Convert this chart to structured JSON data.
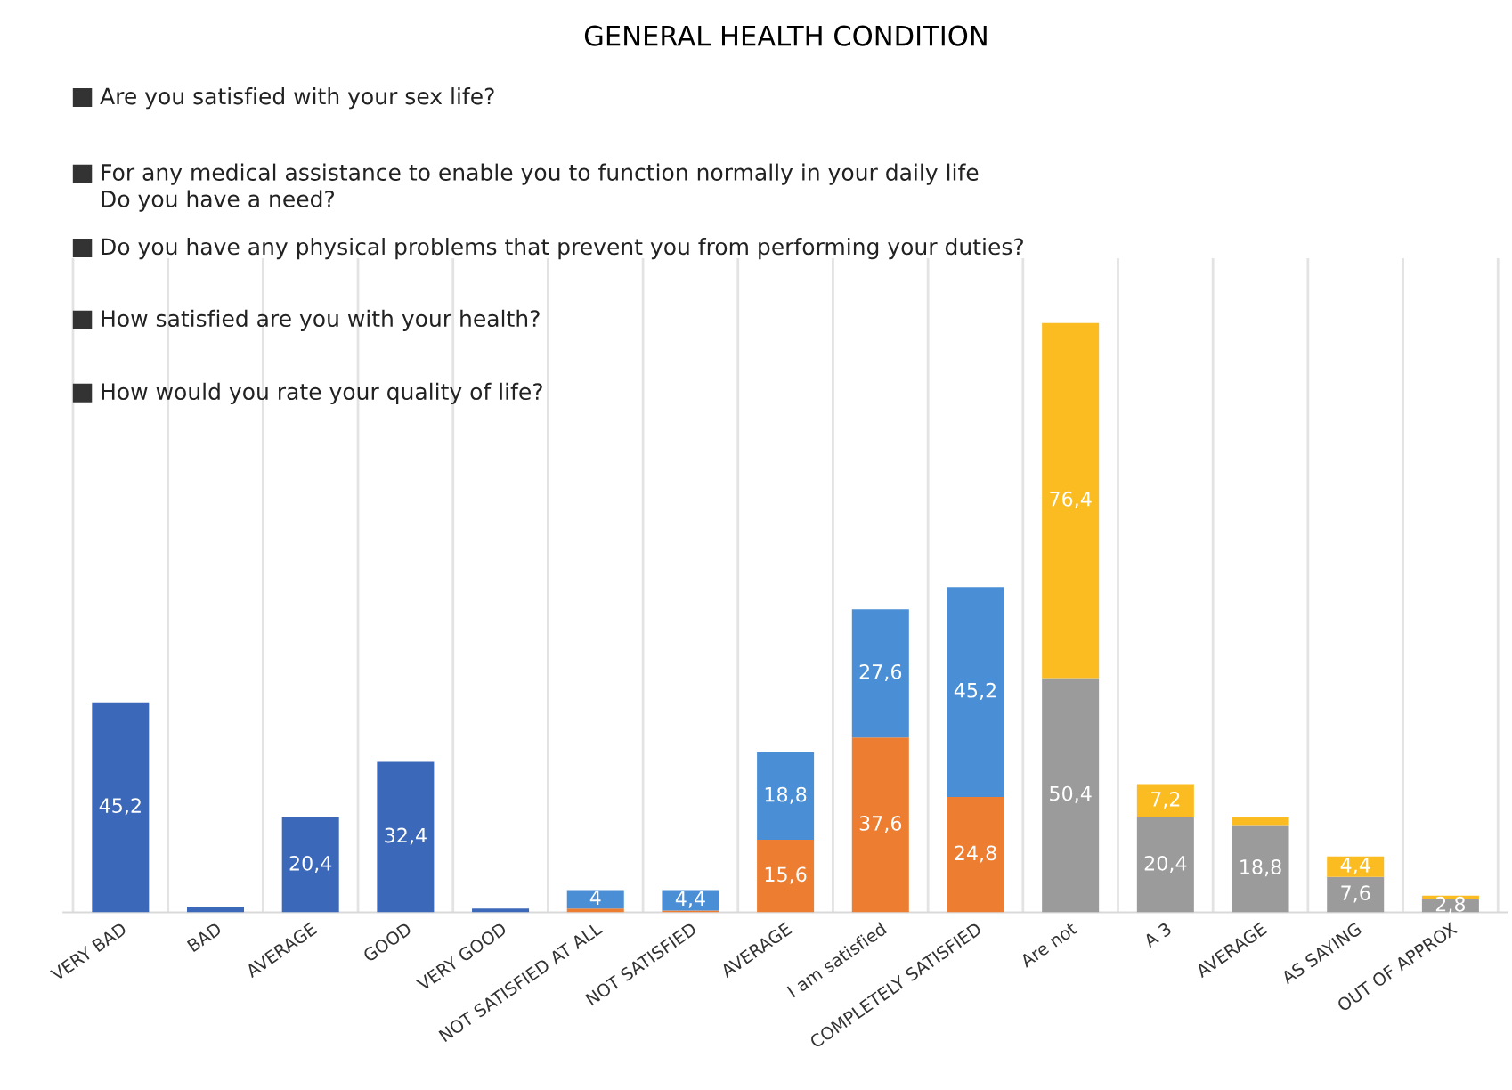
{
  "chart_data": {
    "type": "bar",
    "stacked": true,
    "title": "GENERAL HEALTH CONDITION",
    "annotations": [
      "Are you satisfied with your sex life?",
      "For any medical assistance to enable you to function normally in your daily life\nDo you have a need?",
      "Do you have any physical problems that prevent you from performing your duties?",
      "How satisfied are you with your health?",
      "How would you rate your quality of life?"
    ],
    "categories": [
      "VERY BAD",
      "BAD",
      "AVERAGE",
      "GOOD",
      "VERY GOOD",
      "NOT SATISFIED AT ALL",
      "NOT SATISFIED",
      "AVERAGE",
      "I am satisfied",
      "COMPLETELY SATISFIED",
      "Are not",
      "A 3",
      "AVERAGE",
      "AS SAYING",
      "OUT OF APPROX"
    ],
    "series": [
      {
        "color": "#3b68b9",
        "values": [
          45.2,
          1.2,
          20.4,
          32.4,
          0.8,
          null,
          null,
          null,
          null,
          null,
          null,
          null,
          null,
          null,
          null
        ],
        "value_labels": [
          "45,2",
          null,
          "20,4",
          "32,4",
          null,
          null,
          null,
          null,
          null,
          null,
          null,
          null,
          null,
          null,
          null
        ]
      },
      {
        "color": "#ed7d31",
        "values": [
          null,
          null,
          null,
          null,
          null,
          0.8,
          0.4,
          15.6,
          37.6,
          24.8,
          null,
          null,
          null,
          null,
          null
        ],
        "value_labels": [
          null,
          null,
          null,
          null,
          null,
          null,
          null,
          "15,6",
          "37,6",
          "24,8",
          null,
          null,
          null,
          null,
          null
        ]
      },
      {
        "color": "#4a8fd5",
        "values": [
          null,
          null,
          null,
          null,
          null,
          4,
          4.4,
          18.8,
          27.6,
          45.2,
          null,
          null,
          null,
          null,
          null
        ],
        "value_labels": [
          null,
          null,
          null,
          null,
          null,
          "4",
          "4,4",
          "18,8",
          "27,6",
          "45,2",
          null,
          null,
          null,
          null,
          null
        ]
      },
      {
        "color": "#9b9b9b",
        "values": [
          null,
          null,
          null,
          null,
          null,
          null,
          null,
          null,
          null,
          null,
          50.4,
          20.4,
          18.8,
          7.6,
          2.8
        ],
        "value_labels": [
          null,
          null,
          null,
          null,
          null,
          null,
          null,
          null,
          null,
          null,
          "50,4",
          "20,4",
          "18,8",
          "7,6",
          "2,8"
        ]
      },
      {
        "color": "#fbbc22",
        "values": [
          null,
          null,
          null,
          null,
          null,
          null,
          null,
          null,
          null,
          null,
          76.4,
          7.2,
          1.6,
          4.4,
          0.8
        ],
        "value_labels": [
          null,
          null,
          null,
          null,
          null,
          null,
          null,
          null,
          null,
          null,
          "76,4",
          "7,2",
          null,
          "4,4",
          null
        ]
      }
    ],
    "grid": "x",
    "legend": false
  }
}
